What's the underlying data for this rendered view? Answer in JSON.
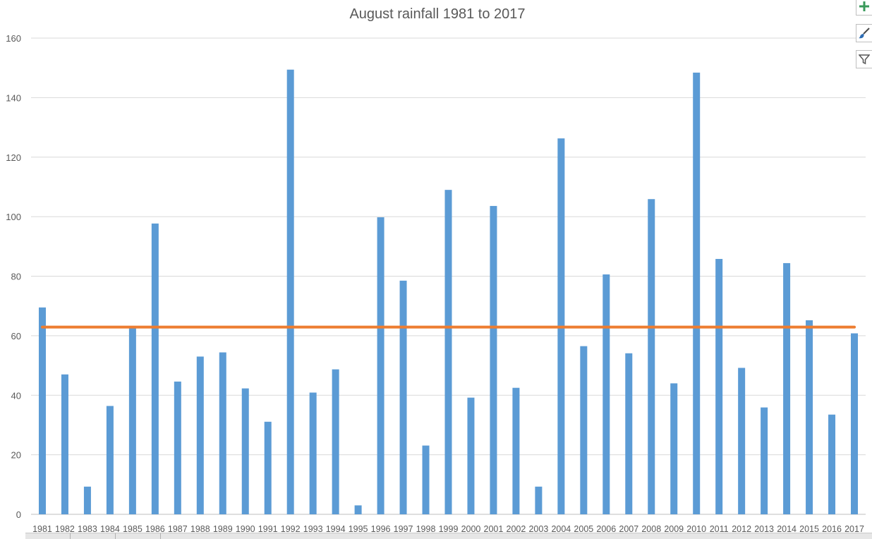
{
  "chart_data": {
    "type": "bar",
    "title": "August rainfall 1981 to 2017",
    "xlabel": "",
    "ylabel": "",
    "ylim": [
      0,
      160
    ],
    "yticks": [
      0,
      20,
      40,
      60,
      80,
      100,
      120,
      140,
      160
    ],
    "grid": true,
    "legend": "none",
    "categories": [
      "1981",
      "1982",
      "1983",
      "1984",
      "1985",
      "1986",
      "1987",
      "1988",
      "1989",
      "1990",
      "1991",
      "1992",
      "1993",
      "1994",
      "1995",
      "1996",
      "1997",
      "1998",
      "1999",
      "2000",
      "2001",
      "2002",
      "2003",
      "2004",
      "2005",
      "2006",
      "2007",
      "2008",
      "2009",
      "2010",
      "2011",
      "2012",
      "2013",
      "2014",
      "2015",
      "2016",
      "2017"
    ],
    "series": [
      {
        "type": "bar",
        "color": "#5b9bd5",
        "values": [
          69.5,
          47,
          9.3,
          36.4,
          62.5,
          97.7,
          44.6,
          53,
          54.4,
          42.3,
          31.1,
          149.4,
          40.9,
          48.7,
          3,
          99.8,
          78.5,
          23.1,
          109,
          39.2,
          103.6,
          42.5,
          9.3,
          126.3,
          56.5,
          80.6,
          54.1,
          105.9,
          44,
          148.4,
          85.8,
          49.2,
          35.9,
          84.4,
          65.2,
          33.5,
          60.8
        ]
      },
      {
        "type": "line",
        "color": "#ed7d31",
        "value": 62.9
      }
    ]
  },
  "toolbar": {
    "buttons": [
      {
        "icon": "plus-icon",
        "color": "#3a9a5b"
      },
      {
        "icon": "brush-icon",
        "color": "#2e6db4"
      },
      {
        "icon": "filter-icon",
        "color": "#555555"
      }
    ]
  }
}
